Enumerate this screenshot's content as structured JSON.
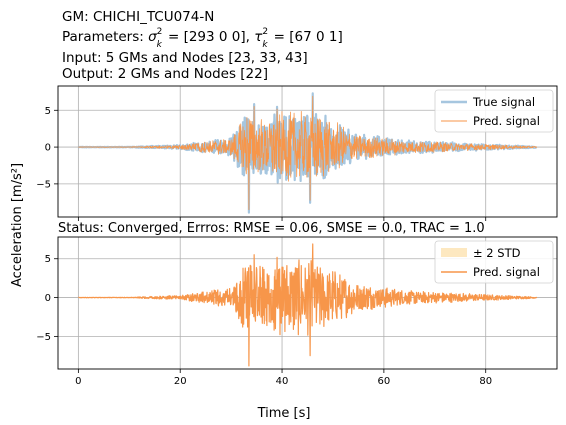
{
  "header": {
    "gm": "GM: CHICHI_TCU074-N",
    "params_prefix": "Parameters: ",
    "sigma_sym": "σ",
    "sigma_vals": " = [293   0   0], ",
    "tau_sym": "τ",
    "tau_vals": " = [67  0  1]",
    "sup2": "2",
    "subk": "k",
    "input": "Input: 5 GMs and Nodes [23, 33, 43]",
    "output": "Output: 2 GMs and Nodes [22]"
  },
  "chart_data": [
    {
      "type": "line",
      "xlim": [
        -4,
        94
      ],
      "ylim": [
        -9.5,
        8.3
      ],
      "yticks": [
        -5,
        0,
        5
      ],
      "xticks": [
        0,
        20,
        40,
        60,
        80
      ],
      "show_xtick_labels": false,
      "grid": true,
      "legend_position": "top-right",
      "series": [
        {
          "name": "True signal",
          "style": "thick",
          "color": "#a6c6df",
          "duration": 90,
          "peak_pos": 7.3,
          "peak_neg": -8.9
        },
        {
          "name": "Pred. signal",
          "style": "thin",
          "color": "#f7964a",
          "duration": 90,
          "peak_pos": 6.9,
          "peak_neg": -8.5
        }
      ]
    },
    {
      "type": "line",
      "title": "Status: Converged, Errros: RMSE = 0.06, SMSE = 0.0, TRAC = 1.0",
      "xlim": [
        -4,
        94
      ],
      "ylim": [
        -9.2,
        7.8
      ],
      "yticks": [
        -5,
        0,
        5
      ],
      "xticks": [
        0,
        20,
        40,
        60,
        80
      ],
      "xtick_labels": [
        "0",
        "20",
        "40",
        "60",
        "80"
      ],
      "grid": true,
      "legend_position": "top-right",
      "series": [
        {
          "name": "± 2 STD",
          "style": "band",
          "color": "#fde8c0"
        },
        {
          "name": "Pred. signal",
          "style": "line",
          "color": "#f7964a",
          "duration": 90,
          "peak_pos": 6.9,
          "peak_neg": -8.8
        }
      ]
    }
  ],
  "ylabel": "Acceleration [m/s²]",
  "xlabel": "Time [s]"
}
